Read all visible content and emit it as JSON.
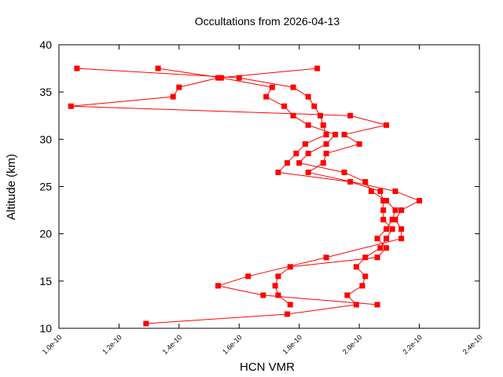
{
  "chart_data": {
    "type": "line",
    "title": "Occultations from 2026-04-13",
    "xlabel": "HCN VMR",
    "ylabel": "Altitude (km)",
    "xlim": [
      1e-10,
      2.4e-10
    ],
    "ylim": [
      10,
      40
    ],
    "xticks": [
      1e-10,
      1.2e-10,
      1.4e-10,
      1.6e-10,
      1.8e-10,
      2e-10,
      2.2e-10,
      2.4e-10
    ],
    "xtick_labels": [
      "1.0e-10",
      "1.2e-10",
      "1.4e-10",
      "1.6e-10",
      "1.8e-10",
      "2.0e-10",
      "2.2e-10",
      "2.4e-10"
    ],
    "yticks": [
      10,
      15,
      20,
      25,
      30,
      35,
      40
    ],
    "ytick_labels": [
      "10",
      "15",
      "20",
      "25",
      "30",
      "35",
      "40"
    ],
    "grid": false,
    "color": "#ff0000",
    "marker": "square",
    "series": [
      {
        "points": [
          [
            1.29e-10,
            10.5
          ],
          [
            1.76e-10,
            11.5
          ],
          [
            1.99e-10,
            12.5
          ],
          [
            1.96e-10,
            13.5
          ],
          [
            2.01e-10,
            14.5
          ],
          [
            2.02e-10,
            15.5
          ],
          [
            1.99e-10,
            16.5
          ],
          [
            2.02e-10,
            17.5
          ],
          [
            2.07e-10,
            18.5
          ],
          [
            2.09e-10,
            19.5
          ],
          [
            2.11e-10,
            20.5
          ],
          [
            2.08e-10,
            21.5
          ],
          [
            2.08e-10,
            22.5
          ],
          [
            2.08e-10,
            23.5
          ],
          [
            2.07e-10,
            24.5
          ],
          [
            1.97e-10,
            25.5
          ],
          [
            1.73e-10,
            26.5
          ],
          [
            1.76e-10,
            27.5
          ],
          [
            1.79e-10,
            28.5
          ],
          [
            1.82e-10,
            29.5
          ],
          [
            1.89e-10,
            30.5
          ],
          [
            1.88e-10,
            31.5
          ],
          [
            1.87e-10,
            32.5
          ],
          [
            1.85e-10,
            33.5
          ],
          [
            1.83e-10,
            34.5
          ],
          [
            1.78e-10,
            35.5
          ],
          [
            1.6e-10,
            36.5
          ],
          [
            1.06e-10,
            37.5
          ]
        ]
      },
      {
        "points": [
          [
            1.77e-10,
            12.5
          ],
          [
            1.73e-10,
            13.5
          ],
          [
            1.72e-10,
            14.5
          ],
          [
            1.73e-10,
            15.5
          ],
          [
            1.77e-10,
            16.5
          ],
          [
            2.06e-10,
            17.5
          ],
          [
            2.09e-10,
            18.5
          ],
          [
            2.06e-10,
            19.5
          ],
          [
            2.09e-10,
            20.5
          ],
          [
            2.11e-10,
            21.5
          ],
          [
            2.12e-10,
            22.5
          ],
          [
            2.09e-10,
            23.5
          ],
          [
            2.04e-10,
            24.5
          ],
          [
            2.02e-10,
            25.5
          ],
          [
            1.95e-10,
            26.5
          ],
          [
            1.8e-10,
            27.5
          ],
          [
            1.83e-10,
            28.5
          ],
          [
            1.89e-10,
            29.5
          ],
          [
            1.92e-10,
            30.5
          ],
          [
            1.83e-10,
            31.5
          ],
          [
            1.78e-10,
            32.5
          ],
          [
            1.75e-10,
            33.5
          ],
          [
            1.69e-10,
            34.5
          ],
          [
            1.71e-10,
            35.5
          ],
          [
            1.54e-10,
            36.5
          ],
          [
            1.33e-10,
            37.5
          ]
        ]
      },
      {
        "points": [
          [
            2.06e-10,
            12.5
          ],
          [
            1.68e-10,
            13.5
          ],
          [
            1.53e-10,
            14.5
          ],
          [
            1.63e-10,
            15.5
          ],
          [
            1.89e-10,
            17.5
          ],
          [
            2.14e-10,
            19.5
          ],
          [
            2.14e-10,
            20.5
          ],
          [
            2.12e-10,
            21.5
          ],
          [
            2.14e-10,
            22.5
          ],
          [
            2.2e-10,
            23.5
          ],
          [
            2.12e-10,
            24.5
          ],
          [
            1.83e-10,
            26.5
          ],
          [
            1.88e-10,
            27.5
          ],
          [
            1.89e-10,
            28.5
          ],
          [
            2e-10,
            29.5
          ],
          [
            1.95e-10,
            30.5
          ],
          [
            2.09e-10,
            31.5
          ],
          [
            1.97e-10,
            32.5
          ],
          [
            1.04e-10,
            33.5
          ],
          [
            1.38e-10,
            34.5
          ],
          [
            1.4e-10,
            35.5
          ],
          [
            1.53e-10,
            36.5
          ],
          [
            1.86e-10,
            37.5
          ]
        ]
      }
    ]
  }
}
